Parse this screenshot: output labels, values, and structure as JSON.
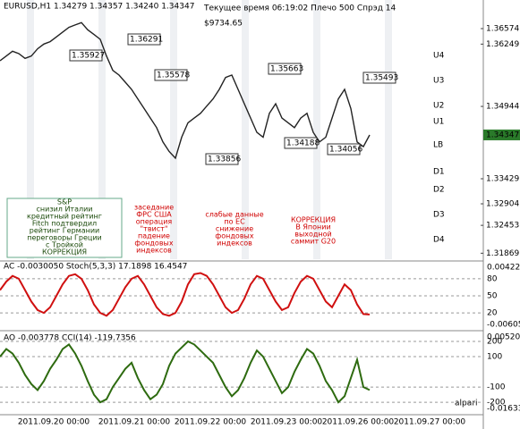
{
  "chart_data": [
    {
      "type": "line",
      "title": "EURUSD,H1  1.34279 1.34357 1.34240 1.34347",
      "series": [
        {
          "name": "EURUSD",
          "color": "#222222",
          "values": [
            1.359,
            1.36,
            1.361,
            1.3605,
            1.3595,
            1.36,
            1.3615,
            1.3625,
            1.363,
            1.364,
            1.365,
            1.366,
            1.3665,
            1.367,
            1.3655,
            1.3645,
            1.3635,
            1.36,
            1.357,
            1.356,
            1.3545,
            1.353,
            1.351,
            1.349,
            1.347,
            1.345,
            1.342,
            1.34,
            1.3386,
            1.343,
            1.346,
            1.347,
            1.348,
            1.3495,
            1.351,
            1.353,
            1.3555,
            1.356,
            1.353,
            1.35,
            1.347,
            1.344,
            1.343,
            1.348,
            1.35,
            1.347,
            1.346,
            1.345,
            1.347,
            1.348,
            1.344,
            1.342,
            1.343,
            1.347,
            1.351,
            1.353,
            1.349,
            1.342,
            1.341,
            1.34347
          ]
        }
      ],
      "ylim": [
        1.31744,
        1.37173
      ],
      "yticks": [
        1.36574,
        1.36249,
        1.34944,
        1.33429,
        1.32904,
        1.32453,
        1.31869
      ],
      "grid": true
    },
    {
      "type": "line",
      "title": "AC -0.0030050  Stoch(5,3,3) 17.1898 16.4547",
      "series": [
        {
          "name": "Stoch",
          "color": "#d01010",
          "values": [
            60,
            75,
            85,
            80,
            60,
            40,
            25,
            20,
            30,
            50,
            70,
            85,
            88,
            80,
            60,
            35,
            20,
            15,
            25,
            45,
            65,
            80,
            85,
            70,
            50,
            30,
            18,
            15,
            20,
            40,
            70,
            88,
            90,
            85,
            70,
            50,
            30,
            20,
            25,
            45,
            70,
            85,
            80,
            60,
            40,
            25,
            30,
            55,
            75,
            85,
            80,
            60,
            40,
            30,
            50,
            70,
            60,
            35,
            18,
            17.1898
          ]
        }
      ],
      "ylim": [
        -8,
        108
      ],
      "yticks": [
        20,
        50,
        80
      ],
      "y2lim": [
        -0.00605,
        0.004225
      ],
      "y2ticks": [
        0.004225,
        -0.00605
      ]
    },
    {
      "type": "line",
      "title": "AO -0.003778  CCI(14) -119.7356",
      "series": [
        {
          "name": "CCI",
          "color": "#2e6b10",
          "values": [
            100,
            150,
            120,
            60,
            -20,
            -80,
            -120,
            -60,
            20,
            80,
            150,
            180,
            120,
            40,
            -60,
            -150,
            -200,
            -180,
            -100,
            -40,
            20,
            60,
            -40,
            -120,
            -180,
            -150,
            -80,
            40,
            120,
            160,
            200,
            180,
            140,
            100,
            60,
            -20,
            -100,
            -160,
            -120,
            -40,
            60,
            140,
            100,
            20,
            -60,
            -140,
            -100,
            0,
            80,
            150,
            120,
            40,
            -60,
            -120,
            -200,
            -160,
            -40,
            80,
            -100,
            -119.7356
          ]
        }
      ],
      "ylim": [
        -270,
        259
      ],
      "yticks": [
        200,
        100,
        -100,
        -200
      ],
      "y2lim": [
        -0.01633,
        0.005202
      ],
      "y2ticks": [
        0.005202,
        -0.01633
      ]
    }
  ],
  "status": "Текущее время 06:19:02 Плечо 500 Спрэд 14",
  "balance": "$9734.65",
  "price_tags": [
    "1.36291",
    "1.35927",
    "1.35578",
    "1.35663",
    "1.35493",
    "1.34188",
    "1.34056",
    "1.33856"
  ],
  "levels": [
    "U4",
    "U3",
    "U2",
    "U1",
    "LB",
    "D1",
    "D2",
    "D3",
    "D4"
  ],
  "news": [
    [
      "S&P",
      "снизил Италии",
      "кредитный рейтинг",
      "Fitch подтвердил",
      "рейтинг Германии",
      "переговоры Греции",
      "с Тройкой",
      "КОРРЕКЦИЯ"
    ],
    [
      "заседание",
      "ФРС США",
      "операция",
      "\"твист\"",
      "падение",
      "фондовых",
      "индексов"
    ],
    [
      "слабые данные",
      "по ЕС",
      "снижение",
      "фондовых",
      "индексов"
    ],
    [
      "КОРРЕКЦИЯ",
      "В Японии",
      "выходной",
      "саммит G20"
    ]
  ],
  "time_axis": [
    "2011.09.20 00:00",
    "2011.09.21 00:00",
    "2011.09.22 00:00",
    "2011.09.23 00:00",
    "2011.09.26 00:00",
    "2011.09.27 00:00"
  ],
  "logo": "alpari"
}
